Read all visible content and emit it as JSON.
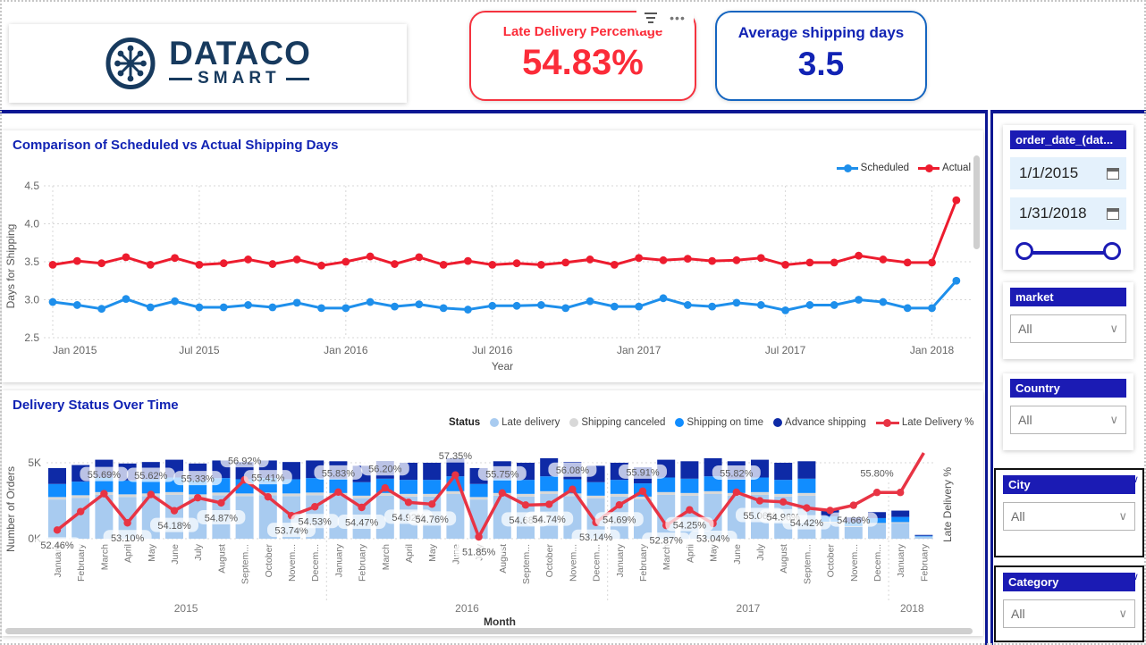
{
  "header": {
    "logo": {
      "brand": "DATACO",
      "sub": "SMART"
    },
    "kpi_late": {
      "title": "Late Delivery Percentage",
      "value": "54.83%"
    },
    "kpi_avg": {
      "title": "Average shipping days",
      "value": "3.5"
    }
  },
  "colors": {
    "title_navy": "#1123b4",
    "kpi_red": "#fb2b38",
    "rule_navy": "#0c1793",
    "scheduled_blue": "#1e8feb",
    "actual_red": "#ed1c2e",
    "late_lightblue": "#a8cbf0",
    "canceled_gray": "#d8d8d8",
    "ontime_blue": "#118dff",
    "advance_navy": "#0e2aa6",
    "pct_line_red": "#e83444",
    "slicer_header_navy": "#1b1bb4"
  },
  "chart_data": [
    {
      "type": "line",
      "title": "Comparison of Scheduled vs Actual Shipping Days",
      "xlabel": "Year",
      "ylabel": "Days for Shipping",
      "ylim": [
        2.5,
        4.5
      ],
      "yticks": [
        "2.5",
        "3.0",
        "3.5",
        "4.0",
        "4.5"
      ],
      "xticks": [
        "Jan 2015",
        "Jul 2015",
        "Jan 2016",
        "Jul 2016",
        "Jan 2017",
        "Jul 2017",
        "Jan 2018"
      ],
      "xtick_indices": [
        0,
        6,
        12,
        18,
        24,
        30,
        36
      ],
      "grid": true,
      "legend_position": "top-right",
      "series": [
        {
          "name": "Scheduled",
          "values": [
            2.97,
            2.93,
            2.88,
            3.01,
            2.9,
            2.98,
            2.9,
            2.9,
            2.93,
            2.9,
            2.96,
            2.89,
            2.89,
            2.97,
            2.91,
            2.94,
            2.89,
            2.87,
            2.92,
            2.92,
            2.93,
            2.89,
            2.98,
            2.91,
            2.91,
            3.02,
            2.93,
            2.91,
            2.96,
            2.93,
            2.86,
            2.93,
            2.93,
            3.0,
            2.97,
            2.89,
            2.89,
            3.25
          ]
        },
        {
          "name": "Actual",
          "values": [
            3.46,
            3.51,
            3.48,
            3.56,
            3.46,
            3.55,
            3.46,
            3.48,
            3.53,
            3.47,
            3.53,
            3.45,
            3.5,
            3.57,
            3.47,
            3.56,
            3.46,
            3.51,
            3.46,
            3.48,
            3.46,
            3.49,
            3.53,
            3.46,
            3.55,
            3.52,
            3.54,
            3.51,
            3.52,
            3.55,
            3.46,
            3.49,
            3.49,
            3.58,
            3.53,
            3.49,
            3.49,
            4.31
          ]
        }
      ]
    },
    {
      "type": "bar",
      "title": "Delivery Status Over Time",
      "xlabel": "Month",
      "ylabel": "Number of Orders",
      "y2label": "Late Delivery %",
      "yticks": [
        "0K",
        "5K"
      ],
      "legend_title": "Status",
      "legend": [
        "Late delivery",
        "Shipping canceled",
        "Shipping on time",
        "Advance shipping",
        "Late Delivery %"
      ],
      "months": [
        "January",
        "February",
        "March",
        "April",
        "May",
        "June",
        "July",
        "August",
        "Septem...",
        "October",
        "Novem...",
        "Decem...",
        "January",
        "February",
        "March",
        "April",
        "May",
        "June",
        "July",
        "August",
        "Septem...",
        "October",
        "Novem...",
        "Decem...",
        "January",
        "February",
        "March",
        "April",
        "May",
        "June",
        "July",
        "August",
        "Septem...",
        "October",
        "Novem...",
        "Decem...",
        "January",
        "February"
      ],
      "years": [
        {
          "label": "2015",
          "start": 0,
          "end": 11
        },
        {
          "label": "2016",
          "start": 12,
          "end": 23
        },
        {
          "label": "2017",
          "start": 24,
          "end": 35
        },
        {
          "label": "2018",
          "start": 36,
          "end": 37
        }
      ],
      "totals_k": [
        4.65,
        4.85,
        5.2,
        4.95,
        5.05,
        5.2,
        4.95,
        5.15,
        5.05,
        5.15,
        5.05,
        5.15,
        5.1,
        4.8,
        5.1,
        5.0,
        5.0,
        5.3,
        4.65,
        5.1,
        5.0,
        5.3,
        5.05,
        4.8,
        5.0,
        4.7,
        5.2,
        5.1,
        5.3,
        5.1,
        5.2,
        5.0,
        5.1,
        1.9,
        1.4,
        1.75,
        1.85,
        0.25
      ],
      "stack_proportions": {
        "late": 0.555,
        "canceled": 0.035,
        "ontime": 0.185,
        "advance": 0.225
      },
      "late_delivery_pct": [
        52.46,
        54.1,
        55.69,
        53.1,
        55.62,
        54.18,
        55.33,
        54.87,
        56.92,
        55.41,
        53.74,
        54.53,
        55.83,
        54.47,
        56.2,
        54.92,
        54.76,
        57.35,
        51.85,
        55.75,
        54.68,
        54.74,
        56.08,
        53.14,
        54.69,
        55.91,
        52.87,
        54.25,
        53.04,
        55.82,
        55.06,
        54.96,
        54.42,
        54.2,
        54.66,
        55.8,
        55.8,
        65.0
      ],
      "pct_labels": [
        "52.46%",
        null,
        "55.69%",
        "53.10%",
        "55.62%",
        "54.18%",
        "55.33%",
        "54.87%",
        "56.92%",
        "55.41%",
        "53.74%",
        "54.53%",
        "55.83%",
        "54.47%",
        "56.20%",
        "54.92%",
        "54.76%",
        "57.35%",
        "51.85%",
        "55.75%",
        "54.68%",
        "54.74%",
        "56.08%",
        "53.14%",
        "54.69%",
        "55.91%",
        "52.87%",
        "54.25%",
        "53.04%",
        "55.82%",
        "55.06%",
        "54.96%",
        "54.42%",
        null,
        "54.66%",
        "55.80%",
        null,
        null
      ]
    }
  ],
  "filters": {
    "order_date": {
      "title": "order_date_(dat...",
      "start": "1/1/2015",
      "end": "1/31/2018"
    },
    "market": {
      "title": "market",
      "value": "All"
    },
    "country": {
      "title": "Country",
      "value": "All"
    },
    "city": {
      "title": "City",
      "value": "All"
    },
    "category": {
      "title": "Category",
      "value": "All"
    }
  }
}
